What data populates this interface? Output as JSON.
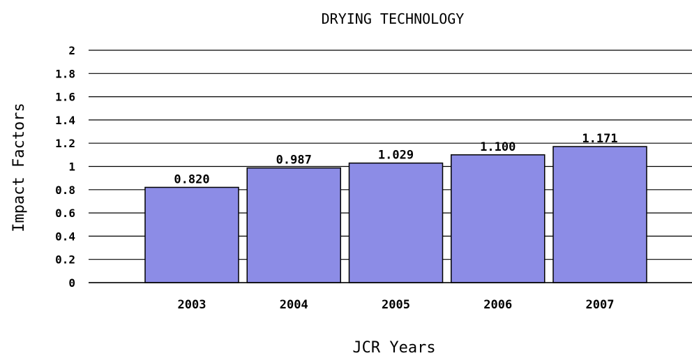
{
  "chart_data": {
    "type": "bar",
    "title": "DRYING TECHNOLOGY",
    "xlabel": "JCR Years",
    "ylabel": "Impact Factors",
    "categories": [
      "2003",
      "2004",
      "2005",
      "2006",
      "2007"
    ],
    "values": [
      0.82,
      0.987,
      1.029,
      1.1,
      1.171
    ],
    "value_labels": [
      "0.820",
      "0.987",
      "1.029",
      "1.100",
      "1.171"
    ],
    "yticks": [
      "0",
      "0.2",
      "0.4",
      "0.6",
      "0.8",
      "1",
      "1.2",
      "1.4",
      "1.6",
      "1.8",
      "2"
    ],
    "ylim": [
      0,
      2
    ],
    "grid": true,
    "bar_color": "#8c8ce6",
    "bar_outline_color": "#000000"
  }
}
